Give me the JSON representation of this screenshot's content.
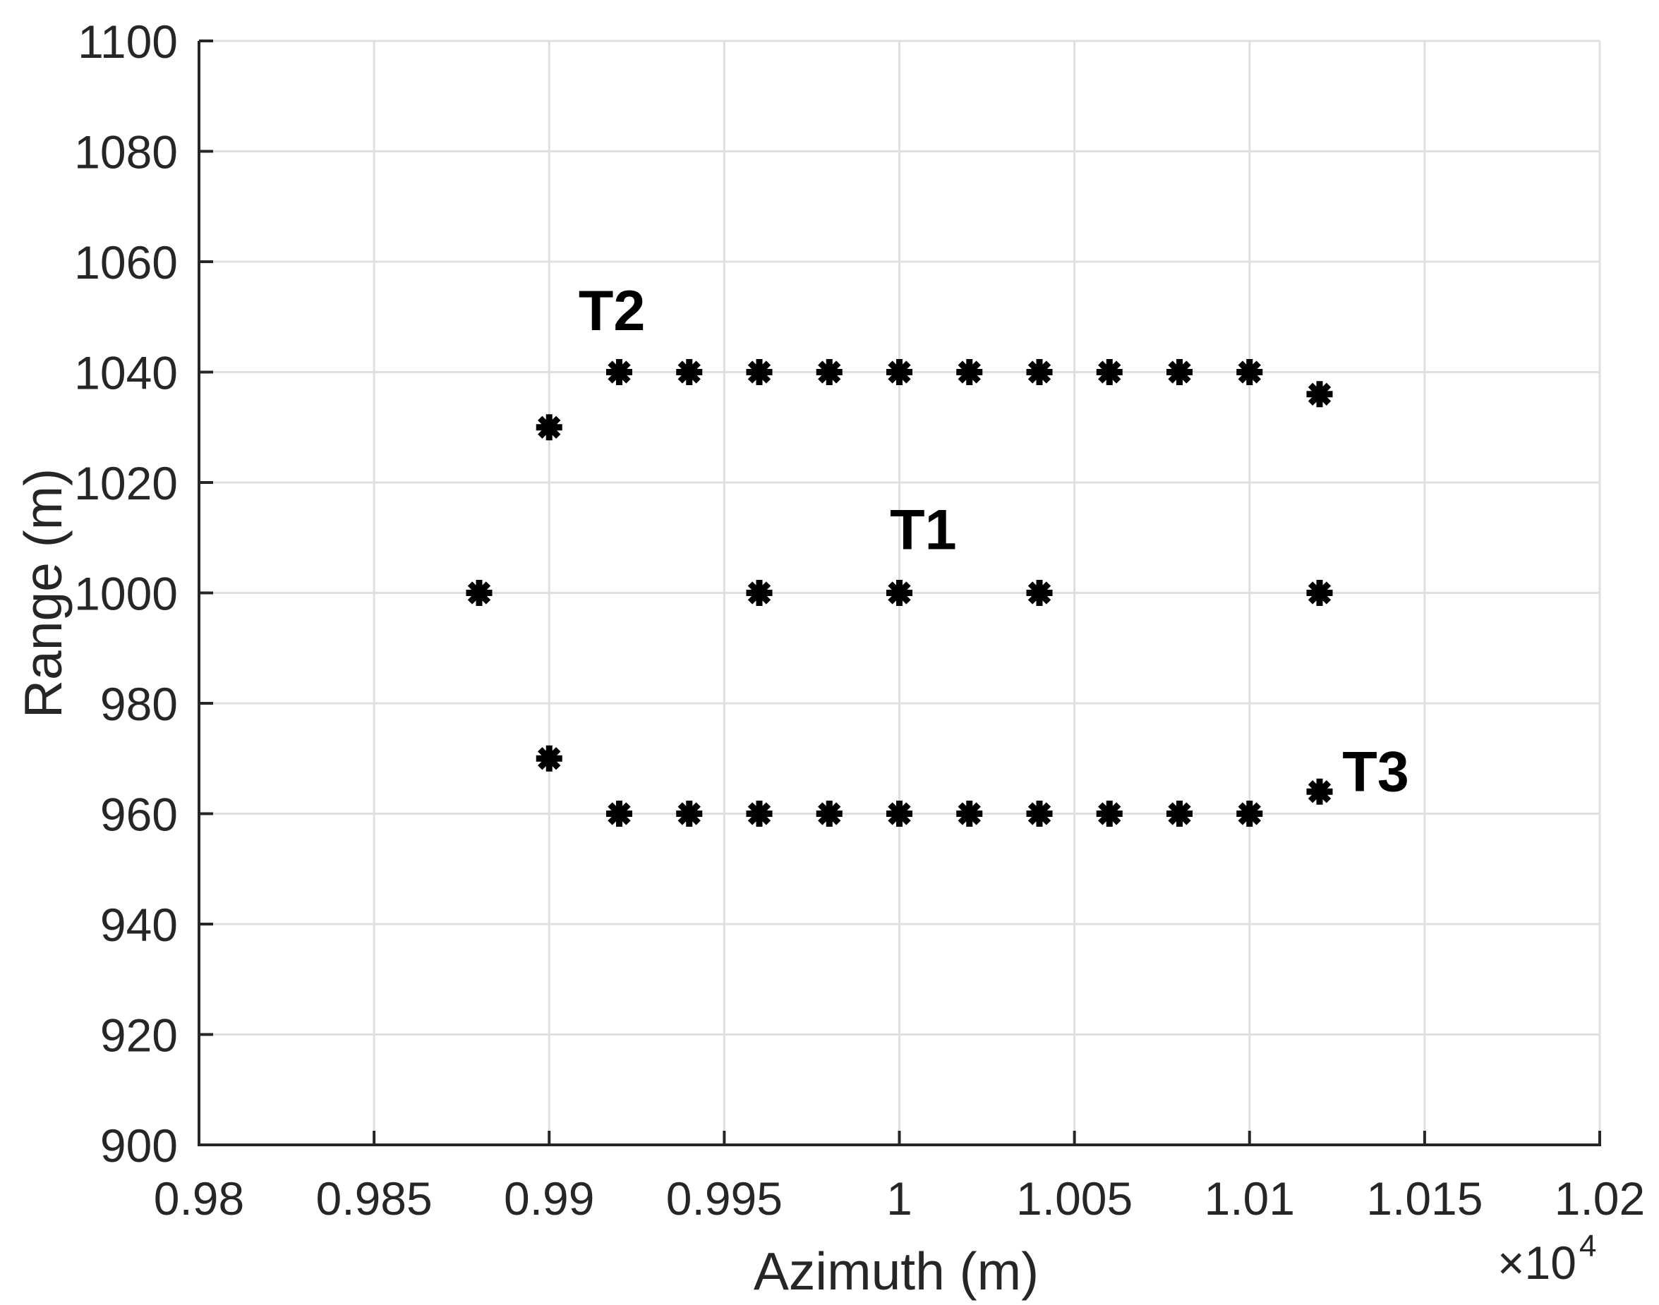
{
  "chart_data": {
    "type": "scatter",
    "title": "",
    "xlabel": "Azimuth (m)",
    "ylabel": "Range (m)",
    "x_scale_note": "×10^4",
    "x_multiplier_base": "×10",
    "x_multiplier_exponent": "4",
    "xlim": [
      0.98,
      1.02
    ],
    "ylim": [
      900,
      1100
    ],
    "grid": true,
    "legend": null,
    "marker": "asterisk",
    "marker_color": "#000000",
    "x_ticks": [
      0.98,
      0.985,
      0.99,
      0.995,
      1.0,
      1.005,
      1.01,
      1.015,
      1.02
    ],
    "x_tick_labels": [
      "0.98",
      "0.985",
      "0.99",
      "0.995",
      "1",
      "1.005",
      "1.01",
      "1.015",
      "1.02"
    ],
    "y_ticks": [
      900,
      920,
      940,
      960,
      980,
      1000,
      1020,
      1040,
      1060,
      1080,
      1100
    ],
    "y_tick_labels": [
      "900",
      "920",
      "940",
      "960",
      "980",
      "1000",
      "1020",
      "1040",
      "1060",
      "1080",
      "1100"
    ],
    "series": [
      {
        "name": "T2",
        "x": [
          0.99,
          0.992,
          0.994,
          0.996,
          0.998,
          1.0,
          1.002,
          1.004,
          1.006,
          1.008,
          1.01,
          1.012
        ],
        "y": [
          1030,
          1040,
          1040,
          1040,
          1040,
          1040,
          1040,
          1040,
          1040,
          1040,
          1040,
          1036
        ]
      },
      {
        "name": "T1",
        "x": [
          0.988,
          0.996,
          1.0,
          1.004,
          1.012
        ],
        "y": [
          1000,
          1000,
          1000,
          1000,
          1000
        ]
      },
      {
        "name": "T3",
        "x": [
          0.99,
          0.992,
          0.994,
          0.996,
          0.998,
          1.0,
          1.002,
          1.004,
          1.006,
          1.008,
          1.01,
          1.012
        ],
        "y": [
          970,
          960,
          960,
          960,
          960,
          960,
          960,
          960,
          960,
          960,
          960,
          964
        ]
      }
    ],
    "annotations": [
      {
        "text": "T2",
        "x": 0.99084,
        "y": 1047.6
      },
      {
        "text": "T1",
        "x": 0.99973,
        "y": 1007.9
      },
      {
        "text": "T3",
        "x": 1.01265,
        "y": 964.1
      }
    ]
  },
  "colors": {
    "axis": "#262626",
    "grid": "#dfdfdf",
    "marker": "#000000",
    "background": "#ffffff"
  }
}
